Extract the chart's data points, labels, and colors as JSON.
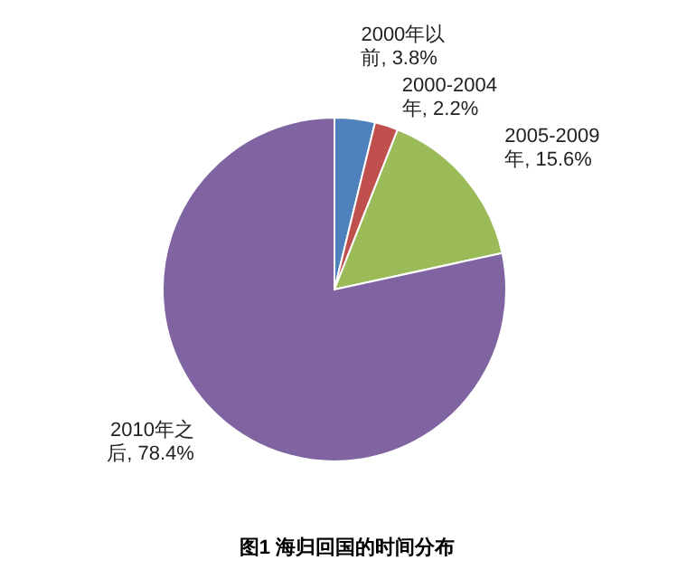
{
  "chart_data": {
    "type": "pie",
    "title": "图1 海归回国的时间分布",
    "categories": [
      "2000年以前",
      "2000-2004年",
      "2005-2009年",
      "2010年之后"
    ],
    "values": [
      3.8,
      2.2,
      15.6,
      78.4
    ],
    "value_labels": [
      "3.8%",
      "2.2%",
      "15.6%",
      "78.4%"
    ],
    "colors": [
      "#4f81bd",
      "#c0504d",
      "#9bbb59",
      "#8064a2"
    ]
  }
}
